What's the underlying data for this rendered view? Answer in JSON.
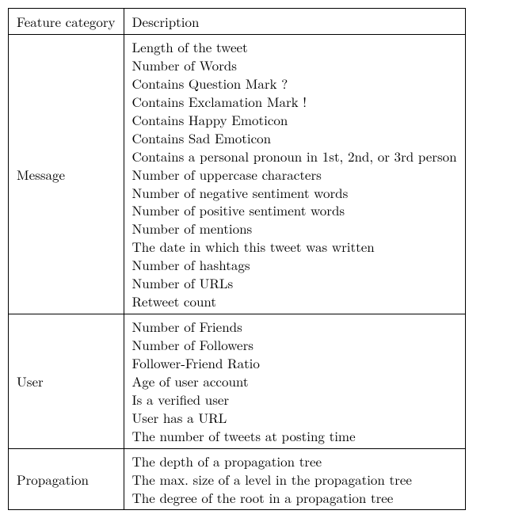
{
  "headers": {
    "feature_category": "Feature category",
    "description": "Description"
  },
  "groups": [
    {
      "category": "Message",
      "items": [
        "Length of the tweet",
        "Number of Words",
        "Contains Question Mark ?",
        "Contains Exclamation Mark !",
        "Contains Happy Emoticon",
        "Contains Sad Emoticon",
        "Contains a personal pronoun in 1st, 2nd, or 3rd person",
        "Number of uppercase characters",
        "Number of negative sentiment words",
        "Number of positive sentiment words",
        "Number of mentions",
        "The date in which this tweet was written",
        "Number of hashtags",
        "Number of URLs",
        "Retweet count"
      ]
    },
    {
      "category": "User",
      "items": [
        "Number of Friends",
        "Number of Followers",
        "Follower-Friend Ratio",
        "Age of user account",
        "Is a verified user",
        "User has a URL",
        "The number of tweets at posting time"
      ]
    },
    {
      "category": "Propagation",
      "items": [
        "The depth of a propagation tree",
        "The max. size of a level in the propagation tree",
        "The degree of the root in a propagation tree"
      ]
    }
  ]
}
